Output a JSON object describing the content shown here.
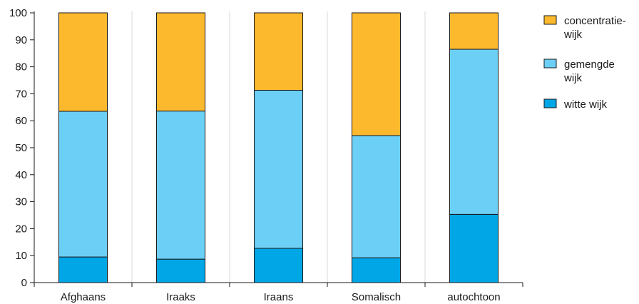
{
  "chart_data": {
    "type": "bar",
    "stacked": true,
    "categories": [
      "Afghaans",
      "Iraaks",
      "Iraans",
      "Somalisch",
      "autochtoon"
    ],
    "series": [
      {
        "name": "witte wijk",
        "color": "#00a6e6",
        "values": [
          9.5,
          8.7,
          12.7,
          9.2,
          25.3
        ]
      },
      {
        "name": "gemengde wijk",
        "color": "#6ccff6",
        "values": [
          54.0,
          54.9,
          58.6,
          45.3,
          61.2
        ]
      },
      {
        "name": "concentratie-wijk",
        "color": "#fdb92e",
        "values": [
          36.5,
          36.4,
          28.7,
          45.5,
          13.5
        ]
      }
    ],
    "legend": [
      {
        "lines": [
          "concentratie-",
          "wijk"
        ],
        "color": "#fdb92e"
      },
      {
        "lines": [
          "gemengde",
          "wijk"
        ],
        "color": "#6ccff6"
      },
      {
        "lines": [
          "witte wijk"
        ],
        "color": "#00a6e6"
      }
    ],
    "legend_position": "top-right",
    "ylim": [
      0,
      100
    ],
    "yticks": [
      "0",
      "10",
      "20",
      "30",
      "40",
      "50",
      "60",
      "70",
      "80",
      "90",
      "100"
    ],
    "grid": "vertical",
    "title": "",
    "xlabel": "",
    "ylabel": ""
  }
}
